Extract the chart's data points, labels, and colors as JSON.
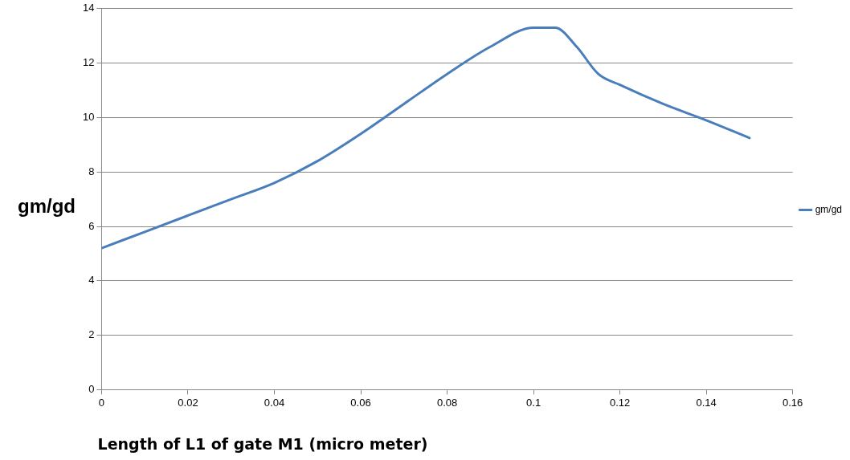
{
  "chart_data": {
    "type": "line",
    "xlabel": "Length of L1 of gate M1 (micro meter)",
    "ylabel": "gm/gd",
    "xlim": [
      0,
      0.16
    ],
    "xticks": [
      0,
      0.02,
      0.04,
      0.06,
      0.08,
      0.1,
      0.12,
      0.14,
      0.16
    ],
    "ylim": [
      0,
      14
    ],
    "yticks": [
      0,
      2,
      4,
      6,
      8,
      10,
      12,
      14
    ],
    "grid": "y",
    "legend": "right",
    "marker": "none",
    "line_style": "solid",
    "series": [
      {
        "name": "gm/gd",
        "color": "#4a7ebb",
        "x": [
          0,
          0.01,
          0.02,
          0.03,
          0.04,
          0.05,
          0.06,
          0.07,
          0.08,
          0.09,
          0.1,
          0.105,
          0.11,
          0.115,
          0.12,
          0.13,
          0.14,
          0.15
        ],
        "values": [
          5.2,
          5.8,
          6.4,
          7.0,
          7.6,
          8.4,
          9.4,
          10.5,
          11.6,
          12.6,
          13.3,
          13.3,
          12.6,
          11.6,
          11.2,
          10.5,
          9.9,
          9.25
        ]
      }
    ]
  }
}
